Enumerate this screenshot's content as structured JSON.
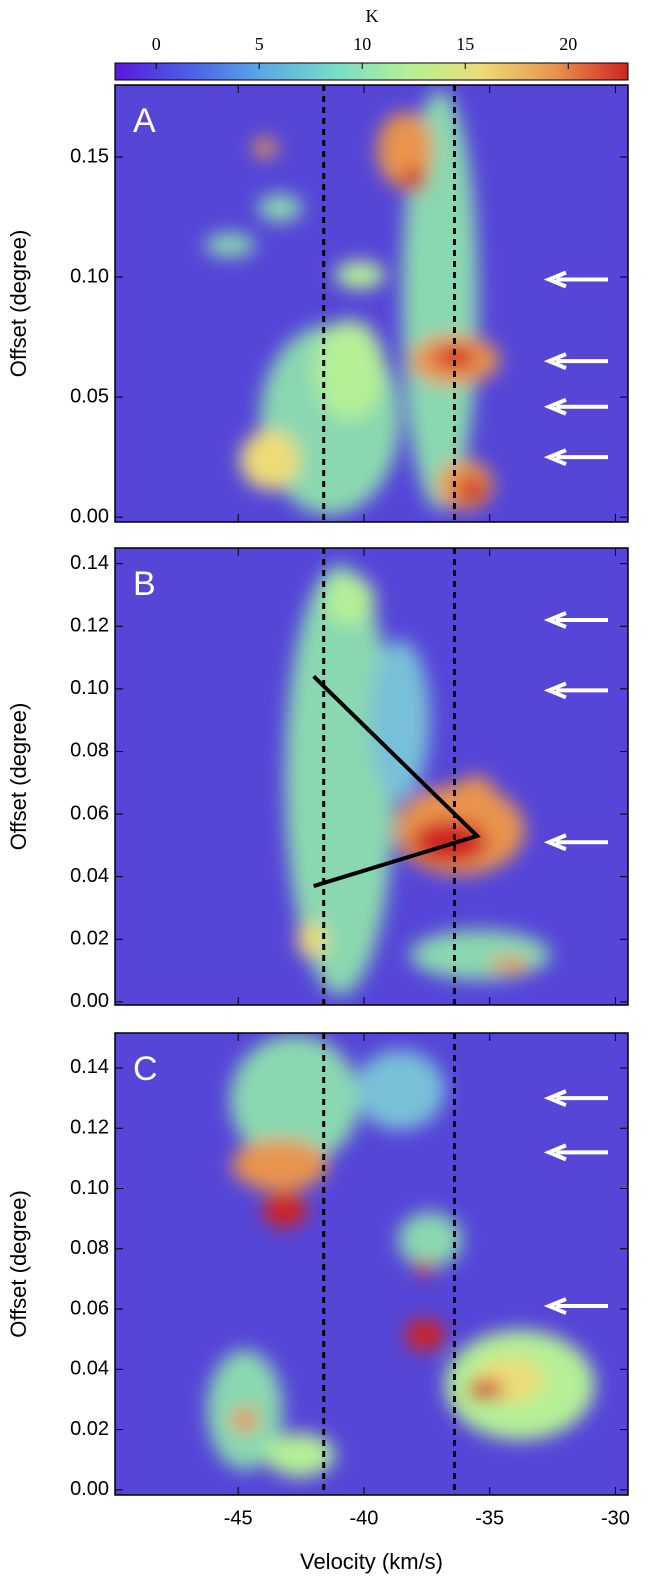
{
  "colorbar": {
    "label": "K",
    "clim": [
      -2,
      22.9
    ],
    "ticks": [
      0,
      5,
      10,
      15,
      20
    ],
    "colormap": [
      "#5b18dc",
      "#4a5ee6",
      "#5aa8e6",
      "#78dcc8",
      "#b4f096",
      "#ecdc78",
      "#e8944e",
      "#d02424"
    ]
  },
  "chart_data": [
    {
      "type": "heatmap",
      "panel_label": "A",
      "ylabel": "Offset (degree)",
      "xlim": [
        -49.9,
        -29.5
      ],
      "xticks": [
        -45,
        -40,
        -35,
        -30
      ],
      "ylim": [
        -0.002,
        0.18
      ],
      "yticks": [
        {
          "value": 0,
          "label": "0.00"
        },
        {
          "value": 0.05,
          "label": "0.05"
        },
        {
          "value": 0.1,
          "label": "0.10"
        },
        {
          "value": 0.15,
          "label": "0.15"
        }
      ],
      "vlines": [
        -41.6,
        -36.4
      ],
      "arrows": [
        0.099,
        0.065,
        0.046,
        0.025
      ]
    },
    {
      "type": "heatmap",
      "panel_label": "B",
      "ylabel": "Offset (degree)",
      "xlim": [
        -49.9,
        -29.5
      ],
      "xticks": [
        -45,
        -40,
        -35,
        -30
      ],
      "ylim": [
        -0.001,
        0.145
      ],
      "yticks": [
        {
          "value": 0,
          "label": "0.00"
        },
        {
          "value": 0.02,
          "label": "0.02"
        },
        {
          "value": 0.04,
          "label": "0.04"
        },
        {
          "value": 0.06,
          "label": "0.06"
        },
        {
          "value": 0.08,
          "label": "0.08"
        },
        {
          "value": 0.1,
          "label": "0.10"
        },
        {
          "value": 0.12,
          "label": "0.12"
        },
        {
          "value": 0.14,
          "label": "0.14"
        }
      ],
      "vlines": [
        -41.6,
        -36.4
      ],
      "arrows": [
        0.122,
        0.0995,
        0.051
      ],
      "line": {
        "x": [
          -42.0,
          -35.5,
          -42.0
        ],
        "y": [
          0.104,
          0.053,
          0.037
        ]
      }
    },
    {
      "type": "heatmap",
      "panel_label": "C",
      "ylabel": "Offset (degree)",
      "xlabel": "Velocity (km/s)",
      "xlim": [
        -49.9,
        -29.5
      ],
      "xticks": [
        -45,
        -40,
        -35,
        -30
      ],
      "ylim": [
        -0.0017,
        0.1516
      ],
      "yticks": [
        {
          "value": 0,
          "label": "0.00"
        },
        {
          "value": 0.02,
          "label": "0.02"
        },
        {
          "value": 0.04,
          "label": "0.04"
        },
        {
          "value": 0.06,
          "label": "0.06"
        },
        {
          "value": 0.08,
          "label": "0.08"
        },
        {
          "value": 0.1,
          "label": "0.10"
        },
        {
          "value": 0.12,
          "label": "0.12"
        },
        {
          "value": 0.14,
          "label": "0.14"
        }
      ],
      "vlines": [
        -41.6,
        -36.4
      ],
      "arrows": [
        0.13,
        0.112,
        0.061
      ]
    }
  ]
}
